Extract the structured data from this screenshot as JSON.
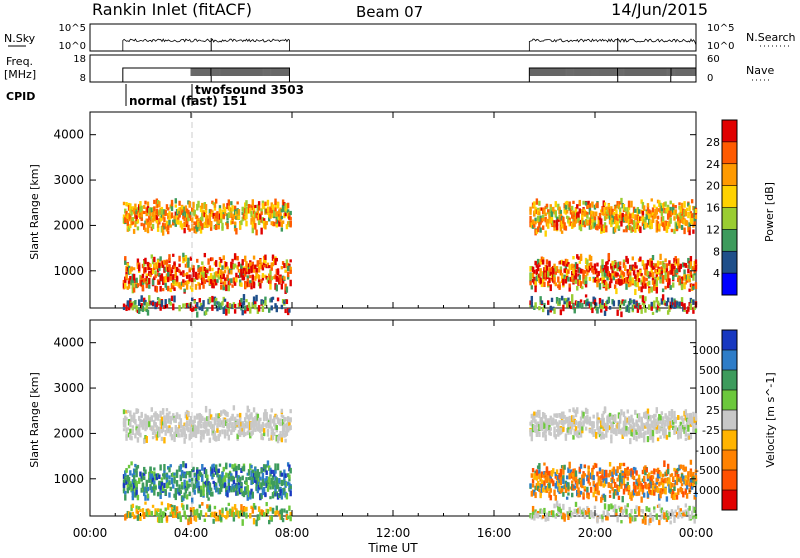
{
  "header": {
    "station": "Rankin Inlet (fitACF)",
    "beam": "Beam 07",
    "date": "14/Jun/2015"
  },
  "strips": {
    "nsky_label": "N.Sky",
    "nsky_hi": "10^5",
    "nsky_lo": "10^0",
    "nsearch_label": "N.Search",
    "nsearch_hi": "10^5",
    "nsearch_lo": "10^0",
    "freq_label": "Freq.",
    "freq_unit": "[MHz]",
    "freq_hi": "18",
    "freq_lo": "8",
    "nave_label": "Nave",
    "nave_hi": "60",
    "nave_lo": "0",
    "cpid_label": "CPID",
    "cpid_mode1": "normal (fast) 151",
    "cpid_mode2": "twofsound 3503"
  },
  "chart_data": [
    {
      "type": "heatmap",
      "panel": "power",
      "ylabel": "Slant Range [km]",
      "xlabel": "Time UT",
      "x_ticks": [
        "00:00",
        "04:00",
        "08:00",
        "12:00",
        "16:00",
        "20:00",
        "00:00"
      ],
      "x_range_hours": [
        0,
        24
      ],
      "y_ticks": [
        1000,
        2000,
        3000,
        4000
      ],
      "y_range_km": [
        180,
        4500
      ],
      "colorbar_label": "Power [dB]",
      "colorbar_ticks": [
        "28",
        "24",
        "20",
        "16",
        "12",
        "8",
        "4"
      ],
      "colorbar_colors": [
        "#e00000",
        "#ff5a00",
        "#ff9a00",
        "#ffd200",
        "#9acd32",
        "#3d9b5c",
        "#1f4f8a",
        "#0000ff"
      ],
      "scatter_intervals_hours": [
        [
          1.3,
          7.9
        ],
        [
          17.4,
          24.0
        ]
      ],
      "echo_bands_km": [
        [
          2000,
          2500
        ],
        [
          700,
          1300
        ],
        [
          200,
          400
        ]
      ]
    },
    {
      "type": "heatmap",
      "panel": "velocity",
      "ylabel": "Slant Range [km]",
      "xlabel": "Time UT",
      "x_ticks": [
        "00:00",
        "04:00",
        "08:00",
        "12:00",
        "16:00",
        "20:00",
        "00:00"
      ],
      "x_range_hours": [
        0,
        24
      ],
      "y_ticks": [
        1000,
        2000,
        3000,
        4000
      ],
      "y_range_km": [
        180,
        4500
      ],
      "colorbar_label": "Velocity [m s^-1]",
      "colorbar_ticks": [
        "1000",
        "500",
        "100",
        "25",
        "-25",
        "-100",
        "-500",
        "-1000"
      ],
      "colorbar_colors": [
        "#1838c0",
        "#2e7dc8",
        "#3d9b5c",
        "#6cc83c",
        "#c8c8c8",
        "#ffb400",
        "#ff8200",
        "#ff5000",
        "#e00000"
      ],
      "scatter_intervals_hours": [
        [
          1.3,
          7.9
        ],
        [
          17.4,
          24.0
        ]
      ],
      "echo_bands_km": [
        [
          2000,
          2500
        ],
        [
          700,
          1300
        ],
        [
          200,
          400
        ]
      ]
    }
  ],
  "colors": {
    "grey_scatter": "#c8c8c8",
    "dashed_marker": "#cccccc"
  }
}
